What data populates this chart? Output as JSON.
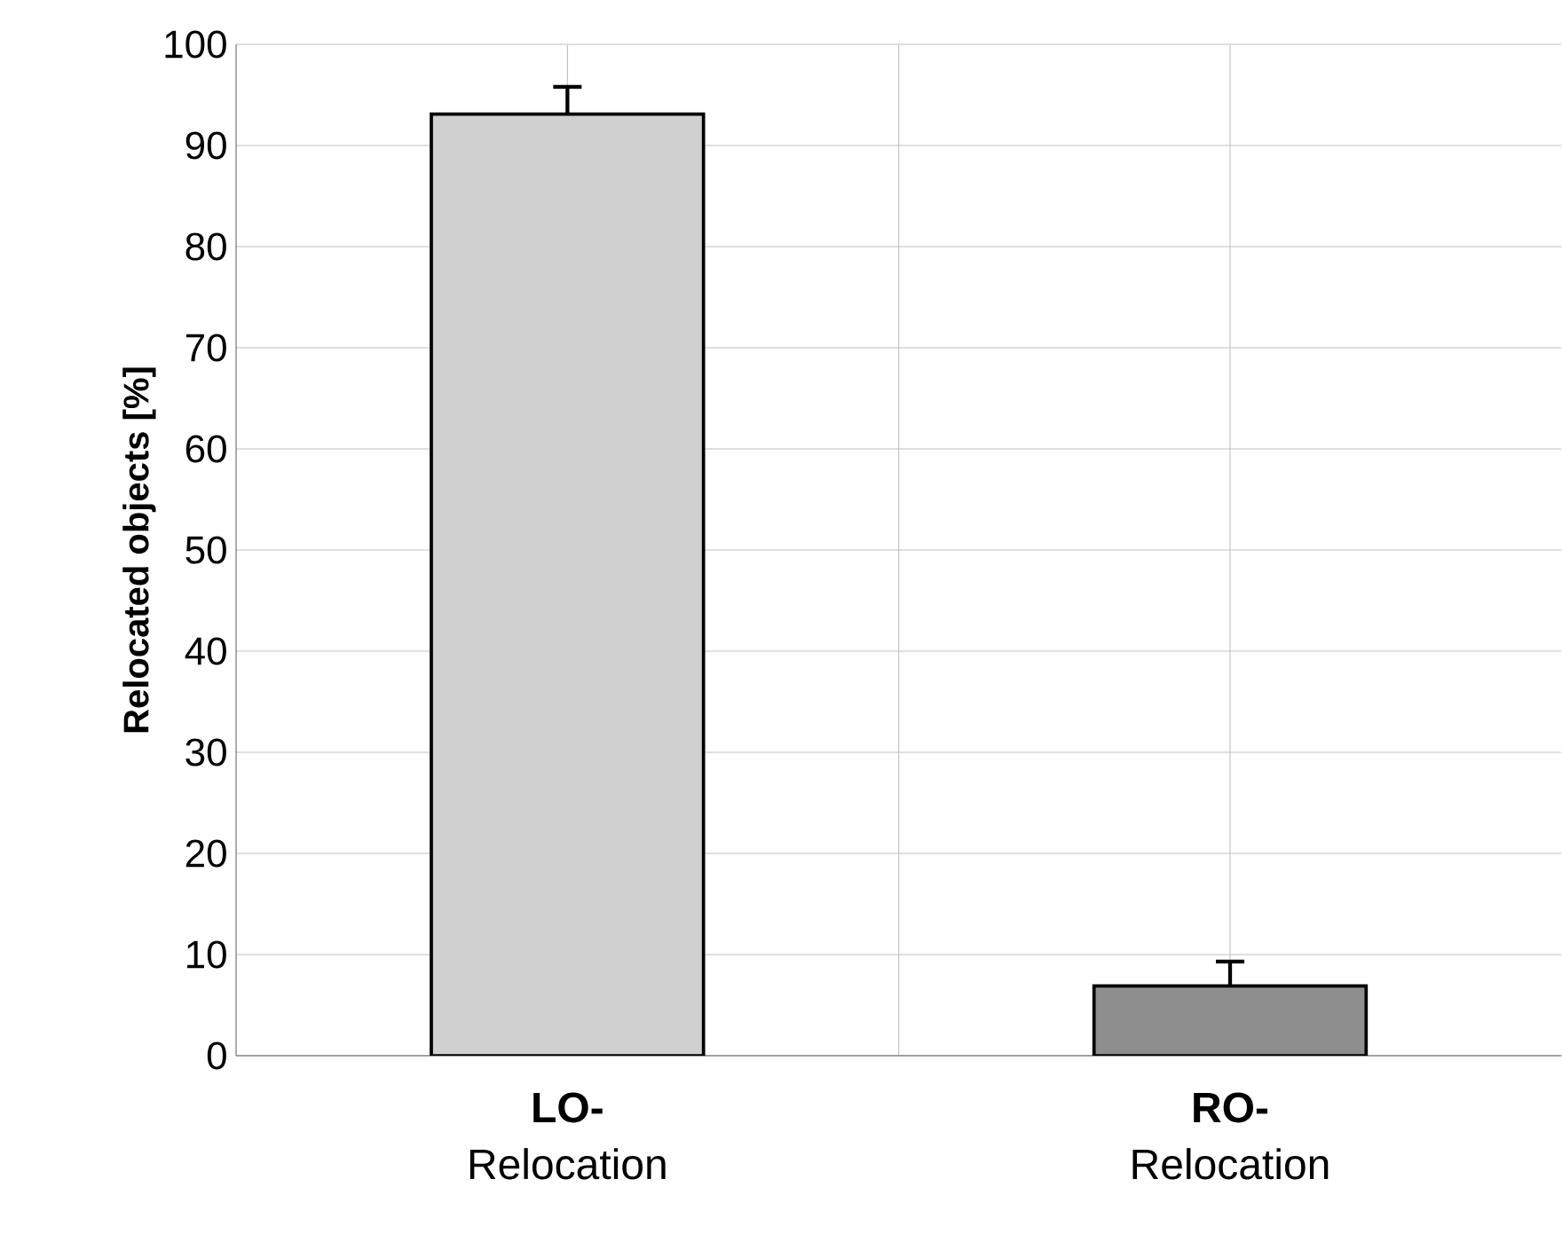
{
  "chart_data": {
    "type": "bar",
    "ylabel": "Relocated objects [%]",
    "categories": [
      "**LO-** Relocation",
      "**RO-** Relocation"
    ],
    "values": [
      93.1,
      6.9
    ],
    "colors": [
      "#d0d0d0",
      "#8e8e8e"
    ],
    "errors": [
      [
        93.1,
        95.8
      ],
      [
        6.9,
        9.3
      ]
    ],
    "ylim": [
      0,
      100
    ],
    "yticks": [
      0,
      10,
      20,
      30,
      40,
      50,
      60,
      70,
      80,
      90,
      100
    ],
    "grid": true
  }
}
